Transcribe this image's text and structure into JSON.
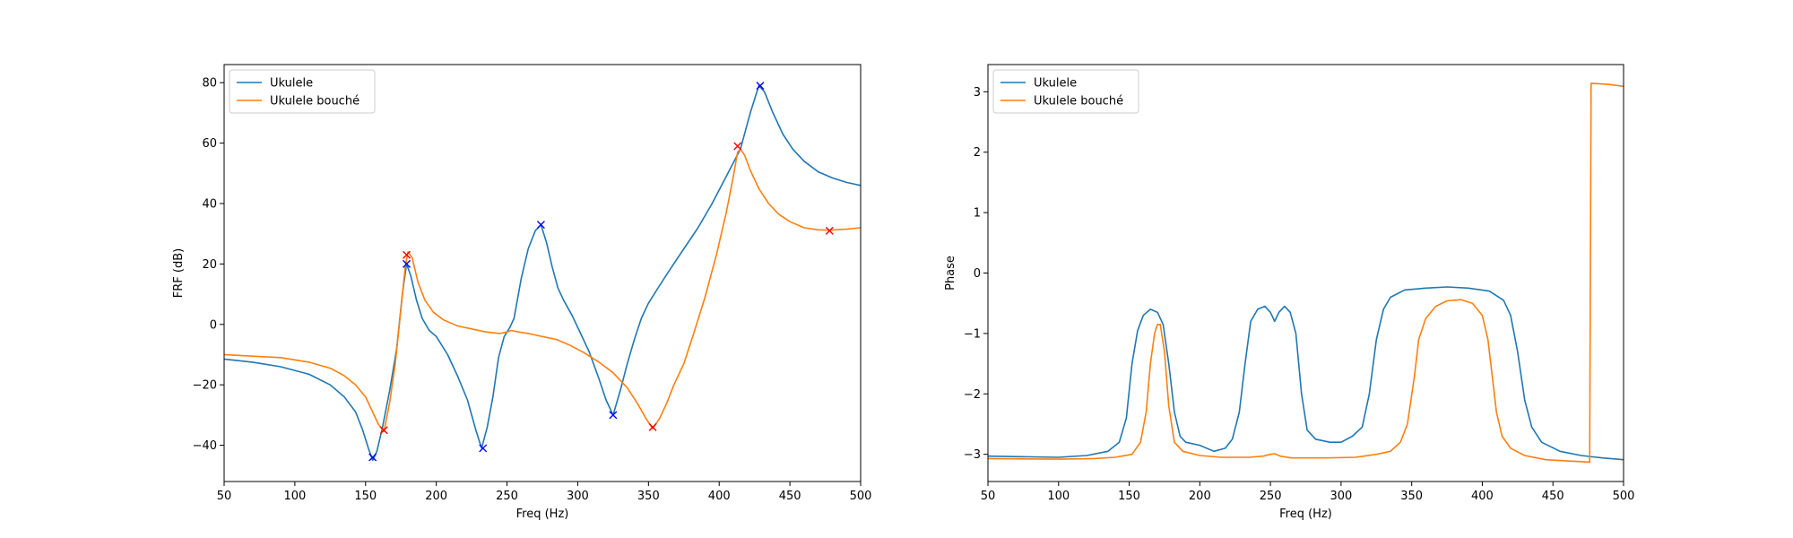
{
  "chart_data": [
    {
      "type": "line",
      "xlabel": "Freq (Hz)",
      "ylabel": "FRF (dB)",
      "xlim": [
        50,
        500
      ],
      "ylim": [
        -52,
        86
      ],
      "xticks": [
        50,
        100,
        150,
        200,
        250,
        300,
        350,
        400,
        450,
        500
      ],
      "yticks": [
        -40,
        -20,
        0,
        20,
        40,
        60,
        80
      ],
      "legend_position": "top-left",
      "series": [
        {
          "name": "Ukulele",
          "color": "#1f77b4",
          "points": [
            [
              50,
              -11.5
            ],
            [
              70,
              -12.5
            ],
            [
              90,
              -14
            ],
            [
              110,
              -16.5
            ],
            [
              125,
              -20
            ],
            [
              135,
              -24
            ],
            [
              143,
              -29
            ],
            [
              148,
              -35
            ],
            [
              152,
              -41
            ],
            [
              155,
              -45
            ],
            [
              158,
              -42
            ],
            [
              162,
              -34
            ],
            [
              167,
              -22
            ],
            [
              172,
              -8
            ],
            [
              176,
              10
            ],
            [
              179,
              20
            ],
            [
              182,
              16
            ],
            [
              186,
              8
            ],
            [
              190,
              2
            ],
            [
              195,
              -2
            ],
            [
              200,
              -4
            ],
            [
              208,
              -10
            ],
            [
              215,
              -17
            ],
            [
              222,
              -25
            ],
            [
              228,
              -35
            ],
            [
              232,
              -41
            ],
            [
              236,
              -34
            ],
            [
              240,
              -24
            ],
            [
              244,
              -11
            ],
            [
              248,
              -4
            ],
            [
              252,
              -1
            ],
            [
              255,
              2
            ],
            [
              260,
              15
            ],
            [
              265,
              25
            ],
            [
              270,
              31
            ],
            [
              274,
              33
            ],
            [
              278,
              27
            ],
            [
              282,
              19
            ],
            [
              286,
              12
            ],
            [
              290,
              8
            ],
            [
              296,
              3
            ],
            [
              302,
              -3
            ],
            [
              308,
              -9
            ],
            [
              315,
              -18
            ],
            [
              320,
              -25
            ],
            [
              325,
              -30
            ],
            [
              330,
              -22
            ],
            [
              335,
              -13
            ],
            [
              340,
              -5
            ],
            [
              345,
              2
            ],
            [
              350,
              7
            ],
            [
              358,
              13
            ],
            [
              365,
              18
            ],
            [
              375,
              25
            ],
            [
              385,
              32
            ],
            [
              395,
              40
            ],
            [
              405,
              49
            ],
            [
              415,
              58
            ],
            [
              422,
              70
            ],
            [
              428,
              79
            ],
            [
              432,
              77
            ],
            [
              438,
              70
            ],
            [
              445,
              63
            ],
            [
              452,
              58
            ],
            [
              460,
              54
            ],
            [
              470,
              50.5
            ],
            [
              480,
              48.5
            ],
            [
              490,
              47
            ],
            [
              500,
              46
            ]
          ]
        },
        {
          "name": "Ukulele bouché",
          "color": "#ff7f0e",
          "points": [
            [
              50,
              -10
            ],
            [
              70,
              -10.5
            ],
            [
              90,
              -11
            ],
            [
              110,
              -12.5
            ],
            [
              125,
              -14.5
            ],
            [
              135,
              -17
            ],
            [
              143,
              -20
            ],
            [
              150,
              -24
            ],
            [
              155,
              -29
            ],
            [
              159,
              -33
            ],
            [
              163,
              -35.5
            ],
            [
              167,
              -26
            ],
            [
              171,
              -13
            ],
            [
              175,
              5
            ],
            [
              178,
              19
            ],
            [
              180,
              24
            ],
            [
              183,
              22
            ],
            [
              187,
              14
            ],
            [
              192,
              8
            ],
            [
              198,
              4
            ],
            [
              205,
              1.5
            ],
            [
              215,
              -0.5
            ],
            [
              225,
              -1.5
            ],
            [
              235,
              -2.5
            ],
            [
              245,
              -3
            ],
            [
              250,
              -2.5
            ],
            [
              253,
              -2
            ],
            [
              258,
              -2.5
            ],
            [
              265,
              -3
            ],
            [
              275,
              -4
            ],
            [
              285,
              -5
            ],
            [
              295,
              -7
            ],
            [
              305,
              -9.5
            ],
            [
              315,
              -12.5
            ],
            [
              325,
              -16
            ],
            [
              335,
              -21
            ],
            [
              342,
              -26
            ],
            [
              348,
              -31
            ],
            [
              353,
              -34.5
            ],
            [
              358,
              -31
            ],
            [
              363,
              -26
            ],
            [
              368,
              -20
            ],
            [
              375,
              -13
            ],
            [
              382,
              -3
            ],
            [
              390,
              9
            ],
            [
              398,
              23
            ],
            [
              405,
              37
            ],
            [
              410,
              49
            ],
            [
              413,
              57
            ],
            [
              415,
              58
            ],
            [
              418,
              56
            ],
            [
              422,
              51
            ],
            [
              428,
              45
            ],
            [
              435,
              40
            ],
            [
              442,
              36.5
            ],
            [
              450,
              34
            ],
            [
              460,
              32
            ],
            [
              470,
              31.3
            ],
            [
              478,
              31.2
            ],
            [
              490,
              31.5
            ],
            [
              500,
              32
            ]
          ]
        }
      ],
      "markers": [
        {
          "series": "Ukulele",
          "color": "#0000ff",
          "symbol": "x",
          "points": [
            [
              155,
              -44
            ],
            [
              179,
              20
            ],
            [
              233,
              -41
            ],
            [
              274,
              33
            ],
            [
              325,
              -30
            ],
            [
              429,
              79
            ]
          ]
        },
        {
          "series": "Ukulele bouché",
          "color": "#ff0000",
          "symbol": "x",
          "points": [
            [
              163,
              -35
            ],
            [
              179,
              23
            ],
            [
              353,
              -34
            ],
            [
              413,
              59
            ],
            [
              478,
              31
            ]
          ]
        }
      ]
    },
    {
      "type": "line",
      "xlabel": "Freq (Hz)",
      "ylabel": "Phase",
      "xlim": [
        50,
        500
      ],
      "ylim": [
        -3.45,
        3.45
      ],
      "xticks": [
        50,
        100,
        150,
        200,
        250,
        300,
        350,
        400,
        450,
        500
      ],
      "yticks": [
        -3,
        -2,
        -1,
        0,
        1,
        2,
        3
      ],
      "legend_position": "top-left",
      "series": [
        {
          "name": "Ukulele",
          "color": "#1f77b4",
          "points": [
            [
              50,
              -3.03
            ],
            [
              100,
              -3.05
            ],
            [
              120,
              -3.02
            ],
            [
              135,
              -2.95
            ],
            [
              143,
              -2.8
            ],
            [
              148,
              -2.4
            ],
            [
              152,
              -1.5
            ],
            [
              156,
              -0.95
            ],
            [
              160,
              -0.7
            ],
            [
              165,
              -0.6
            ],
            [
              170,
              -0.65
            ],
            [
              174,
              -0.85
            ],
            [
              178,
              -1.5
            ],
            [
              182,
              -2.3
            ],
            [
              186,
              -2.7
            ],
            [
              190,
              -2.8
            ],
            [
              200,
              -2.85
            ],
            [
              210,
              -2.95
            ],
            [
              218,
              -2.9
            ],
            [
              223,
              -2.75
            ],
            [
              228,
              -2.3
            ],
            [
              232,
              -1.5
            ],
            [
              236,
              -0.8
            ],
            [
              241,
              -0.6
            ],
            [
              246,
              -0.55
            ],
            [
              250,
              -0.65
            ],
            [
              253,
              -0.8
            ],
            [
              256,
              -0.65
            ],
            [
              260,
              -0.55
            ],
            [
              264,
              -0.65
            ],
            [
              268,
              -1
            ],
            [
              272,
              -2
            ],
            [
              276,
              -2.6
            ],
            [
              282,
              -2.75
            ],
            [
              292,
              -2.8
            ],
            [
              300,
              -2.8
            ],
            [
              308,
              -2.7
            ],
            [
              315,
              -2.55
            ],
            [
              320,
              -2
            ],
            [
              325,
              -1.1
            ],
            [
              330,
              -0.6
            ],
            [
              335,
              -0.4
            ],
            [
              345,
              -0.28
            ],
            [
              360,
              -0.25
            ],
            [
              375,
              -0.23
            ],
            [
              390,
              -0.25
            ],
            [
              405,
              -0.3
            ],
            [
              415,
              -0.45
            ],
            [
              420,
              -0.7
            ],
            [
              425,
              -1.3
            ],
            [
              430,
              -2.1
            ],
            [
              435,
              -2.55
            ],
            [
              442,
              -2.8
            ],
            [
              455,
              -2.95
            ],
            [
              470,
              -3.02
            ],
            [
              485,
              -3.06
            ],
            [
              500,
              -3.09
            ]
          ]
        },
        {
          "name": "Ukulele bouché",
          "color": "#ff7f0e",
          "points": [
            [
              50,
              -3.07
            ],
            [
              100,
              -3.08
            ],
            [
              125,
              -3.07
            ],
            [
              140,
              -3.05
            ],
            [
              152,
              -3
            ],
            [
              158,
              -2.8
            ],
            [
              162,
              -2.3
            ],
            [
              165,
              -1.5
            ],
            [
              168,
              -1
            ],
            [
              170,
              -0.85
            ],
            [
              172,
              -0.85
            ],
            [
              175,
              -1.3
            ],
            [
              178,
              -2.2
            ],
            [
              182,
              -2.8
            ],
            [
              188,
              -2.95
            ],
            [
              200,
              -3.02
            ],
            [
              215,
              -3.05
            ],
            [
              235,
              -3.05
            ],
            [
              245,
              -3.03
            ],
            [
              250,
              -3
            ],
            [
              253,
              -2.99
            ],
            [
              257,
              -3.03
            ],
            [
              265,
              -3.06
            ],
            [
              290,
              -3.06
            ],
            [
              310,
              -3.05
            ],
            [
              325,
              -3.0
            ],
            [
              335,
              -2.95
            ],
            [
              342,
              -2.8
            ],
            [
              347,
              -2.5
            ],
            [
              352,
              -1.7
            ],
            [
              355,
              -1.1
            ],
            [
              360,
              -0.75
            ],
            [
              367,
              -0.55
            ],
            [
              375,
              -0.46
            ],
            [
              385,
              -0.44
            ],
            [
              393,
              -0.5
            ],
            [
              400,
              -0.7
            ],
            [
              404,
              -1.1
            ],
            [
              407,
              -1.7
            ],
            [
              410,
              -2.3
            ],
            [
              414,
              -2.7
            ],
            [
              420,
              -2.9
            ],
            [
              430,
              -3.02
            ],
            [
              445,
              -3.09
            ],
            [
              460,
              -3.11
            ],
            [
              470,
              -3.12
            ],
            [
              476,
              -3.13
            ],
            [
              477,
              3.14
            ],
            [
              490,
              3.12
            ],
            [
              500,
              3.09
            ]
          ]
        }
      ],
      "markers": []
    }
  ]
}
